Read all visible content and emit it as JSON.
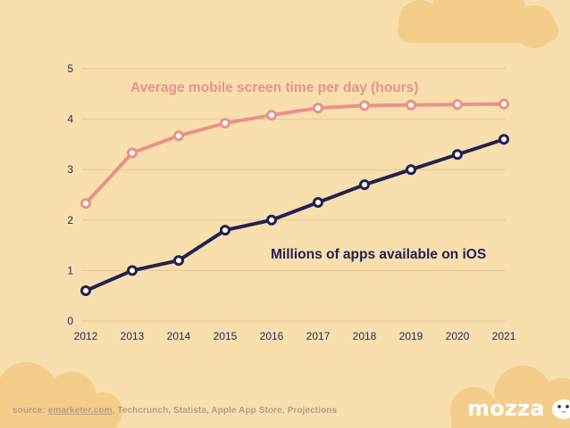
{
  "chart_data": {
    "type": "line",
    "x": [
      "2012",
      "2013",
      "2014",
      "2015",
      "2016",
      "2017",
      "2018",
      "2019",
      "2020",
      "2021"
    ],
    "ylim": [
      0,
      5
    ],
    "yticks": [
      "0",
      "1",
      "2",
      "3",
      "4",
      "5"
    ],
    "grid": true,
    "series": [
      {
        "name": "Average mobile screen time per day (hours)",
        "values": [
          2.33,
          3.33,
          3.67,
          3.92,
          4.08,
          4.22,
          4.27,
          4.28,
          4.29,
          4.3
        ],
        "color": "#e8928a"
      },
      {
        "name": "Millions of apps available on iOS",
        "values": [
          0.6,
          1.0,
          1.2,
          1.8,
          2.0,
          2.35,
          2.7,
          3.0,
          3.3,
          3.6
        ],
        "color": "#222250"
      }
    ]
  },
  "footer": {
    "prefix": "source: ",
    "link": "emarketer.com",
    "rest": ", Techcrunch, Statista, Apple App Store, Projections"
  },
  "brand": {
    "name": "mozza",
    "icon": "mozza-mascot-icon"
  },
  "colors": {
    "background": "#f9dfae",
    "cloud": "#f4cd8b",
    "grid": "#e6c591",
    "axis_text": "#2a2a55"
  }
}
